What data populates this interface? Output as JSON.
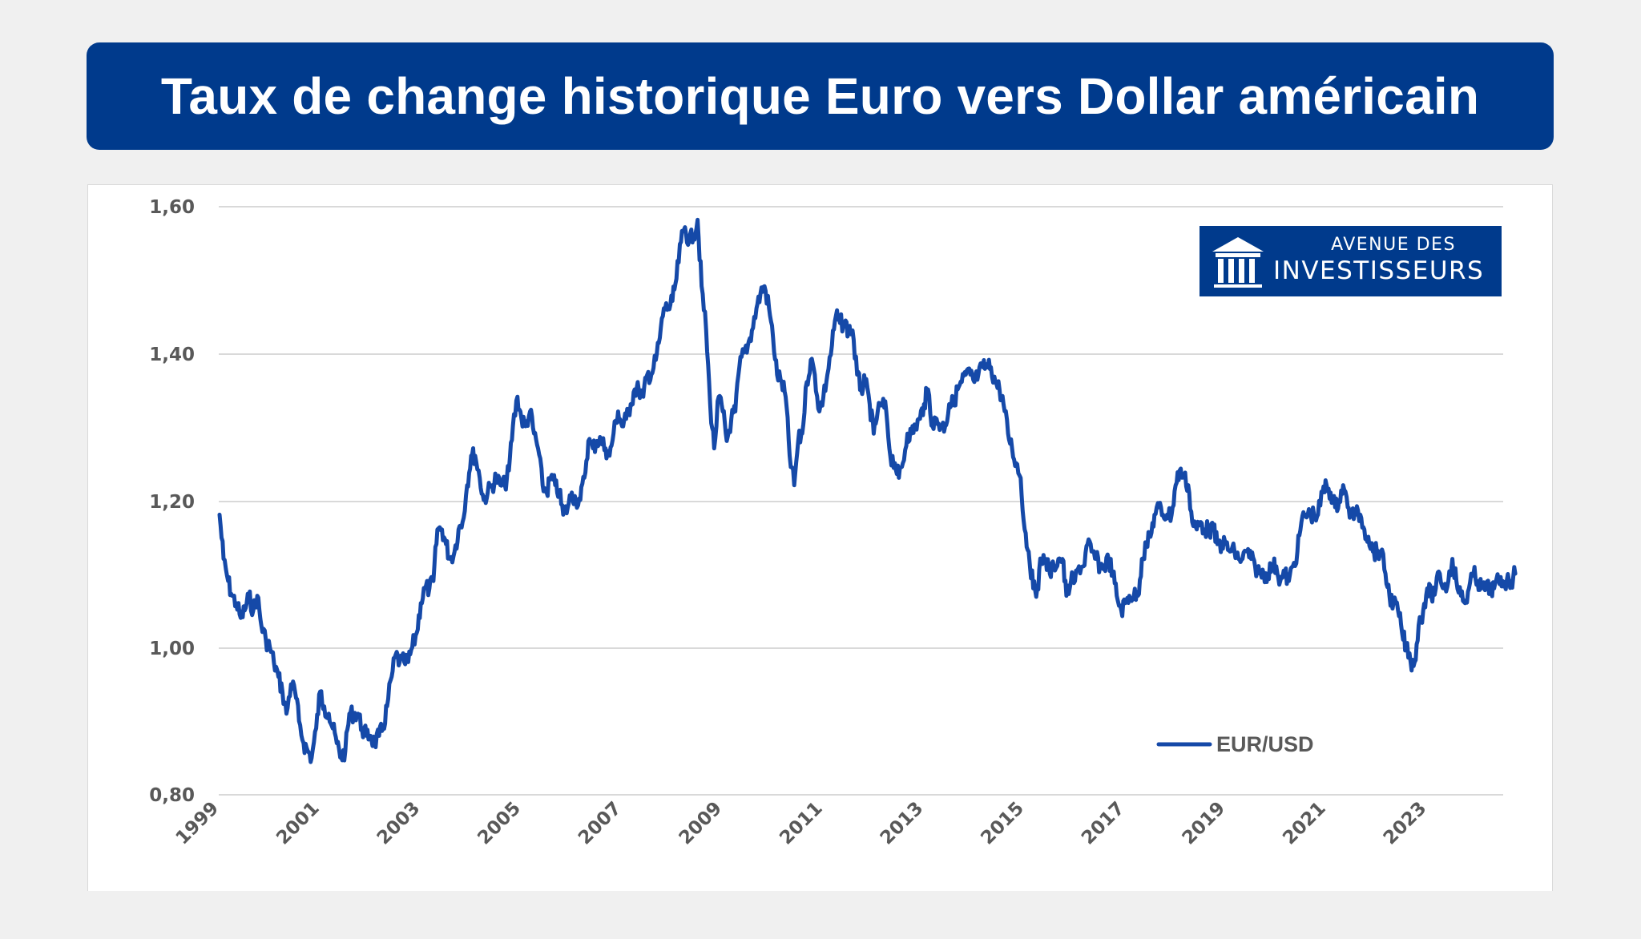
{
  "header": {
    "title": "Taux de change historique Euro vers Dollar américain"
  },
  "logo": {
    "line1": "AVENUE DES",
    "line2": "INVESTISSEURS",
    "icon": "bank-columns-icon"
  },
  "colors": {
    "title_bg": "#003a8c",
    "line": "#1549a8",
    "grid": "#d9d9d9",
    "axis_text": "#595959",
    "page_bg": "#f0f0f0"
  },
  "chart_data": {
    "type": "line",
    "title": "Taux de change historique Euro vers Dollar américain",
    "xlabel": "",
    "ylabel": "",
    "ylim": [
      0.8,
      1.6
    ],
    "xlim": [
      1999.0,
      2024.75
    ],
    "grid": true,
    "legend_position": "lower right",
    "y_ticks": [
      "0,80",
      "1,00",
      "1,20",
      "1,40",
      "1,60"
    ],
    "y_tick_values": [
      0.8,
      1.0,
      1.2,
      1.4,
      1.6
    ],
    "x_ticks": [
      "1999",
      "2001",
      "2003",
      "2005",
      "2007",
      "2009",
      "2011",
      "2013",
      "2015",
      "2017",
      "2019",
      "2021",
      "2023"
    ],
    "series": [
      {
        "name": "EUR/USD",
        "x": [
          1999.0,
          1999.08,
          1999.17,
          1999.25,
          1999.33,
          1999.42,
          1999.5,
          1999.58,
          1999.67,
          1999.75,
          1999.83,
          1999.92,
          2000.0,
          2000.08,
          2000.17,
          2000.25,
          2000.33,
          2000.42,
          2000.5,
          2000.58,
          2000.67,
          2000.75,
          2000.83,
          2000.92,
          2001.0,
          2001.08,
          2001.17,
          2001.25,
          2001.33,
          2001.42,
          2001.5,
          2001.58,
          2001.67,
          2001.75,
          2001.83,
          2001.92,
          2002.0,
          2002.08,
          2002.17,
          2002.25,
          2002.33,
          2002.42,
          2002.5,
          2002.58,
          2002.67,
          2002.75,
          2002.83,
          2002.92,
          2003.0,
          2003.08,
          2003.17,
          2003.25,
          2003.33,
          2003.42,
          2003.5,
          2003.58,
          2003.67,
          2003.75,
          2003.83,
          2003.92,
          2004.0,
          2004.08,
          2004.17,
          2004.25,
          2004.33,
          2004.42,
          2004.5,
          2004.58,
          2004.67,
          2004.75,
          2004.83,
          2004.92,
          2005.0,
          2005.08,
          2005.17,
          2005.25,
          2005.33,
          2005.42,
          2005.5,
          2005.58,
          2005.67,
          2005.75,
          2005.83,
          2005.92,
          2006.0,
          2006.08,
          2006.17,
          2006.25,
          2006.33,
          2006.42,
          2006.5,
          2006.58,
          2006.67,
          2006.75,
          2006.83,
          2006.92,
          2007.0,
          2007.08,
          2007.17,
          2007.25,
          2007.33,
          2007.42,
          2007.5,
          2007.58,
          2007.67,
          2007.75,
          2007.83,
          2007.92,
          2008.0,
          2008.08,
          2008.17,
          2008.25,
          2008.33,
          2008.42,
          2008.5,
          2008.58,
          2008.67,
          2008.75,
          2008.83,
          2008.92,
          2009.0,
          2009.08,
          2009.17,
          2009.25,
          2009.33,
          2009.42,
          2009.5,
          2009.58,
          2009.67,
          2009.75,
          2009.83,
          2009.92,
          2010.0,
          2010.08,
          2010.17,
          2010.25,
          2010.33,
          2010.42,
          2010.5,
          2010.58,
          2010.67,
          2010.75,
          2010.83,
          2010.92,
          2011.0,
          2011.08,
          2011.17,
          2011.25,
          2011.33,
          2011.42,
          2011.5,
          2011.58,
          2011.67,
          2011.75,
          2011.83,
          2011.92,
          2012.0,
          2012.08,
          2012.17,
          2012.25,
          2012.33,
          2012.42,
          2012.5,
          2012.58,
          2012.67,
          2012.75,
          2012.83,
          2012.92,
          2013.0,
          2013.08,
          2013.17,
          2013.25,
          2013.33,
          2013.42,
          2013.5,
          2013.58,
          2013.67,
          2013.75,
          2013.83,
          2013.92,
          2014.0,
          2014.08,
          2014.17,
          2014.25,
          2014.33,
          2014.42,
          2014.5,
          2014.58,
          2014.67,
          2014.75,
          2014.83,
          2014.92,
          2015.0,
          2015.08,
          2015.17,
          2015.25,
          2015.33,
          2015.42,
          2015.5,
          2015.58,
          2015.67,
          2015.75,
          2015.83,
          2015.92,
          2016.0,
          2016.08,
          2016.17,
          2016.25,
          2016.33,
          2016.42,
          2016.5,
          2016.58,
          2016.67,
          2016.75,
          2016.83,
          2016.92,
          2017.0,
          2017.08,
          2017.17,
          2017.25,
          2017.33,
          2017.42,
          2017.5,
          2017.58,
          2017.67,
          2017.75,
          2017.83,
          2017.92,
          2018.0,
          2018.08,
          2018.17,
          2018.25,
          2018.33,
          2018.42,
          2018.5,
          2018.58,
          2018.67,
          2018.75,
          2018.83,
          2018.92,
          2019.0,
          2019.08,
          2019.17,
          2019.25,
          2019.33,
          2019.42,
          2019.5,
          2019.58,
          2019.67,
          2019.75,
          2019.83,
          2019.92,
          2020.0,
          2020.08,
          2020.17,
          2020.25,
          2020.33,
          2020.42,
          2020.5,
          2020.58,
          2020.67,
          2020.75,
          2020.83,
          2020.92,
          2021.0,
          2021.08,
          2021.17,
          2021.25,
          2021.33,
          2021.42,
          2021.5,
          2021.58,
          2021.67,
          2021.75,
          2021.83,
          2021.92,
          2022.0,
          2022.08,
          2022.17,
          2022.25,
          2022.33,
          2022.42,
          2022.5,
          2022.58,
          2022.67,
          2022.75,
          2022.83,
          2022.92,
          2023.0,
          2023.08,
          2023.17,
          2023.25,
          2023.33,
          2023.42,
          2023.5,
          2023.58,
          2023.67,
          2023.75,
          2023.83,
          2023.92,
          2024.0,
          2024.08,
          2024.17,
          2024.25,
          2024.33,
          2024.42,
          2024.5,
          2024.58,
          2024.67,
          2024.75
        ],
        "values": [
          1.18,
          1.12,
          1.09,
          1.07,
          1.06,
          1.04,
          1.05,
          1.07,
          1.05,
          1.07,
          1.03,
          1.01,
          1.0,
          0.98,
          0.96,
          0.94,
          0.91,
          0.95,
          0.94,
          0.9,
          0.87,
          0.86,
          0.85,
          0.89,
          0.94,
          0.92,
          0.91,
          0.89,
          0.87,
          0.85,
          0.86,
          0.91,
          0.91,
          0.91,
          0.89,
          0.88,
          0.88,
          0.87,
          0.88,
          0.89,
          0.92,
          0.96,
          0.99,
          0.98,
          0.98,
          0.98,
          1.0,
          1.02,
          1.06,
          1.08,
          1.08,
          1.09,
          1.16,
          1.16,
          1.14,
          1.12,
          1.13,
          1.16,
          1.17,
          1.22,
          1.26,
          1.26,
          1.23,
          1.2,
          1.21,
          1.22,
          1.23,
          1.22,
          1.22,
          1.24,
          1.3,
          1.34,
          1.31,
          1.3,
          1.32,
          1.29,
          1.27,
          1.22,
          1.21,
          1.23,
          1.22,
          1.21,
          1.18,
          1.19,
          1.21,
          1.2,
          1.2,
          1.23,
          1.28,
          1.27,
          1.28,
          1.28,
          1.27,
          1.26,
          1.29,
          1.32,
          1.3,
          1.31,
          1.33,
          1.35,
          1.35,
          1.34,
          1.37,
          1.37,
          1.39,
          1.42,
          1.46,
          1.46,
          1.47,
          1.5,
          1.55,
          1.57,
          1.55,
          1.56,
          1.58,
          1.49,
          1.43,
          1.33,
          1.27,
          1.34,
          1.32,
          1.28,
          1.31,
          1.32,
          1.38,
          1.4,
          1.41,
          1.43,
          1.46,
          1.48,
          1.49,
          1.46,
          1.42,
          1.37,
          1.36,
          1.34,
          1.26,
          1.22,
          1.28,
          1.29,
          1.36,
          1.39,
          1.37,
          1.32,
          1.34,
          1.37,
          1.41,
          1.45,
          1.44,
          1.44,
          1.43,
          1.43,
          1.37,
          1.35,
          1.36,
          1.33,
          1.29,
          1.32,
          1.33,
          1.32,
          1.26,
          1.25,
          1.23,
          1.25,
          1.29,
          1.29,
          1.3,
          1.31,
          1.33,
          1.35,
          1.3,
          1.31,
          1.3,
          1.3,
          1.33,
          1.33,
          1.35,
          1.36,
          1.37,
          1.37,
          1.36,
          1.37,
          1.38,
          1.38,
          1.38,
          1.36,
          1.35,
          1.33,
          1.29,
          1.27,
          1.25,
          1.23,
          1.16,
          1.13,
          1.08,
          1.08,
          1.12,
          1.12,
          1.1,
          1.11,
          1.12,
          1.12,
          1.07,
          1.09,
          1.09,
          1.11,
          1.11,
          1.14,
          1.13,
          1.12,
          1.11,
          1.11,
          1.12,
          1.1,
          1.07,
          1.05,
          1.06,
          1.07,
          1.07,
          1.07,
          1.12,
          1.14,
          1.15,
          1.18,
          1.19,
          1.18,
          1.18,
          1.18,
          1.22,
          1.24,
          1.23,
          1.22,
          1.17,
          1.16,
          1.17,
          1.16,
          1.16,
          1.16,
          1.14,
          1.14,
          1.14,
          1.13,
          1.13,
          1.12,
          1.12,
          1.13,
          1.12,
          1.11,
          1.1,
          1.1,
          1.1,
          1.11,
          1.11,
          1.09,
          1.1,
          1.09,
          1.11,
          1.13,
          1.17,
          1.18,
          1.18,
          1.18,
          1.18,
          1.21,
          1.22,
          1.21,
          1.19,
          1.2,
          1.22,
          1.19,
          1.18,
          1.18,
          1.18,
          1.16,
          1.15,
          1.13,
          1.13,
          1.13,
          1.1,
          1.07,
          1.06,
          1.05,
          1.02,
          1.0,
          0.98,
          0.98,
          1.03,
          1.05,
          1.08,
          1.07,
          1.08,
          1.1,
          1.08,
          1.09,
          1.12,
          1.09,
          1.07,
          1.06,
          1.08,
          1.1,
          1.09,
          1.08,
          1.08,
          1.08,
          1.08,
          1.09,
          1.09,
          1.09,
          1.09,
          1.1
        ]
      }
    ]
  },
  "axes": {
    "y_ticks": [
      "1,60",
      "1,40",
      "1,20",
      "1,00",
      "0,80"
    ],
    "x_ticks": [
      "1999",
      "2001",
      "2003",
      "2005",
      "2007",
      "2009",
      "2011",
      "2013",
      "2015",
      "2017",
      "2019",
      "2021",
      "2023"
    ]
  },
  "legend": {
    "label": "EUR/USD"
  }
}
